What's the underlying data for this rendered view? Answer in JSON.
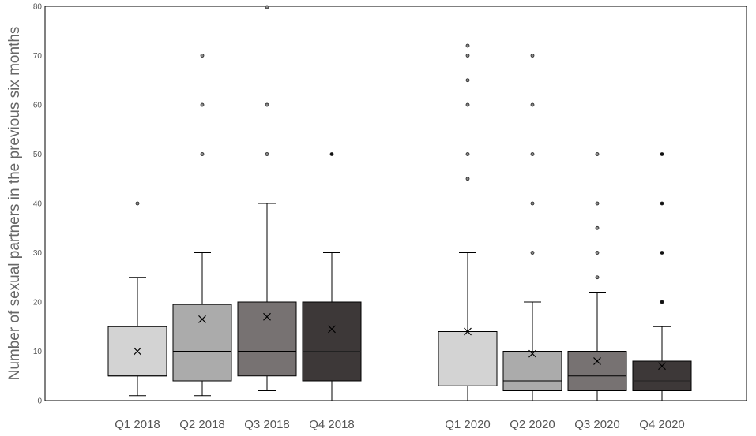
{
  "chart_data": {
    "type": "box",
    "title": "",
    "xlabel": "",
    "ylabel": "Number of sexual  partners in the previous six months",
    "ylim": [
      0,
      80
    ],
    "yticks": [
      0,
      10,
      20,
      30,
      40,
      50,
      60,
      70,
      80
    ],
    "grid": false,
    "legend": "none",
    "groups": [
      {
        "boxes": [
          {
            "label": "Q1 2018",
            "color": "#d3d3d3",
            "whisker_low": 1,
            "q1": 5,
            "median": 5,
            "q3": 15,
            "whisker_high": 25,
            "mean": 10,
            "outliers": [
              40
            ]
          },
          {
            "label": "Q2 2018",
            "color": "#ababab",
            "whisker_low": 1,
            "q1": 4,
            "median": 10,
            "q3": 19.5,
            "whisker_high": 30,
            "mean": 16.5,
            "outliers": [
              50,
              60,
              70
            ]
          },
          {
            "label": "Q3 2018",
            "color": "#777272",
            "whisker_low": 2,
            "q1": 5,
            "median": 10,
            "q3": 20,
            "whisker_high": 40,
            "mean": 17,
            "outliers": [
              50,
              60,
              80
            ]
          },
          {
            "label": "Q4 2018",
            "color": "#3d3838",
            "whisker_low": 0,
            "q1": 4,
            "median": 10,
            "q3": 20,
            "whisker_high": 30,
            "mean": 14.5,
            "outliers": [
              50
            ]
          }
        ]
      },
      {
        "boxes": [
          {
            "label": "Q1 2020",
            "color": "#d3d3d3",
            "whisker_low": 0,
            "q1": 3,
            "median": 6,
            "q3": 14,
            "whisker_high": 30,
            "mean": 14,
            "outliers": [
              45,
              50,
              60,
              65,
              70,
              72
            ]
          },
          {
            "label": "Q2 2020",
            "color": "#ababab",
            "whisker_low": 0,
            "q1": 2,
            "median": 4,
            "q3": 10,
            "whisker_high": 20,
            "mean": 9.5,
            "outliers": [
              30,
              40,
              50,
              60,
              70
            ]
          },
          {
            "label": "Q3 2020",
            "color": "#777272",
            "whisker_low": 0,
            "q1": 2,
            "median": 5,
            "q3": 10,
            "whisker_high": 22,
            "mean": 8,
            "outliers": [
              25,
              30,
              35,
              40,
              50
            ]
          },
          {
            "label": "Q4 2020",
            "color": "#3d3838",
            "whisker_low": 0,
            "q1": 2,
            "median": 4,
            "q3": 8,
            "whisker_high": 15,
            "mean": 7,
            "outliers": [
              20,
              30,
              40,
              50
            ]
          }
        ]
      }
    ]
  }
}
